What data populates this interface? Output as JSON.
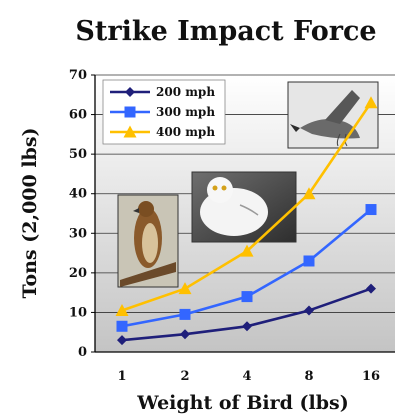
{
  "chart_data": {
    "type": "line",
    "title": "Strike Impact Force",
    "xlabel": "Weight of Bird (lbs)",
    "ylabel": "Tons (2,000 lbs)",
    "categories": [
      "1",
      "2",
      "4",
      "8",
      "16"
    ],
    "ylim": [
      0,
      70
    ],
    "yticks": [
      "0",
      "10",
      "20",
      "30",
      "40",
      "50",
      "60",
      "70"
    ],
    "grid": true,
    "legend_position": "top-left",
    "series": [
      {
        "name": "200 mph",
        "values": [
          3,
          4.5,
          6.5,
          10.5,
          16
        ],
        "color": "#1f1f7a",
        "marker": "diamond"
      },
      {
        "name": "300 mph",
        "values": [
          6.5,
          9.5,
          14,
          23,
          36
        ],
        "color": "#3366ff",
        "marker": "square"
      },
      {
        "name": "400 mph",
        "values": [
          10.5,
          16,
          25.5,
          40,
          63
        ],
        "color": "#ffc000",
        "marker": "triangle"
      }
    ],
    "images": [
      {
        "name": "hawk-photo"
      },
      {
        "name": "owl-photo"
      },
      {
        "name": "goose-photo"
      }
    ]
  }
}
